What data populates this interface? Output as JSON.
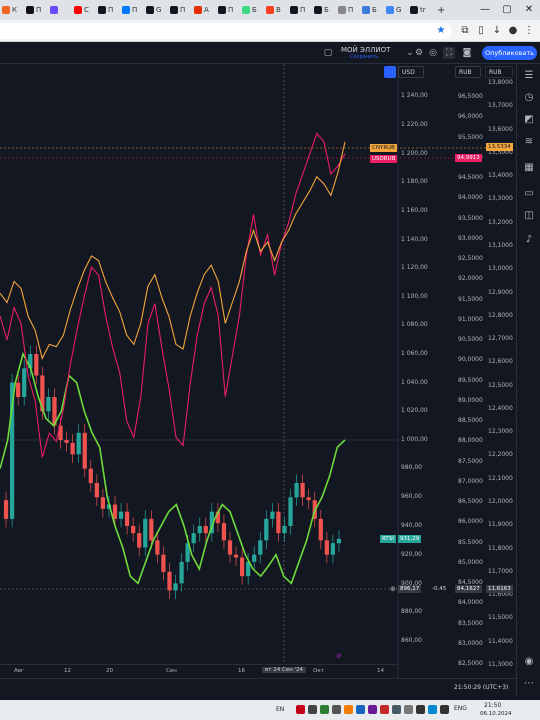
{
  "browser": {
    "tabs": [
      {
        "label": "К",
        "icon": "kinopoisk-icon",
        "color": "#f26522"
      },
      {
        "label": "П",
        "icon": "notion-icon",
        "color": "#111111"
      },
      {
        "label": "",
        "icon": "proton-icon",
        "color": "#6d4aff"
      },
      {
        "label": "С",
        "icon": "youtube-icon",
        "color": "#ff0000"
      },
      {
        "label": "П",
        "icon": "tv-icon",
        "color": "#131722"
      },
      {
        "label": "П",
        "icon": "vk-icon",
        "color": "#0077ff"
      },
      {
        "label": "G",
        "icon": "tv-icon",
        "color": "#131722"
      },
      {
        "label": "П",
        "icon": "tv-icon",
        "color": "#131722"
      },
      {
        "label": "А",
        "icon": "aliexpress-icon",
        "color": "#e62e04"
      },
      {
        "label": "П",
        "icon": "tv-icon",
        "color": "#131722"
      },
      {
        "label": "Б",
        "icon": "android-icon",
        "color": "#3ddc84"
      },
      {
        "label": "В",
        "icon": "yandex-icon",
        "color": "#fc3f1d"
      },
      {
        "label": "П",
        "icon": "tv-icon",
        "color": "#131722"
      },
      {
        "label": "Б",
        "icon": "tv-icon",
        "color": "#131722"
      },
      {
        "label": "П",
        "icon": "web-icon",
        "color": "#888888"
      },
      {
        "label": "Б",
        "icon": "web-icon",
        "color": "#3d7bd9"
      },
      {
        "label": "G",
        "icon": "google-icon",
        "color": "#4285f4"
      },
      {
        "label": "tr",
        "icon": "tv-icon",
        "color": "#131722"
      }
    ],
    "new_tab": "+",
    "win_minimize": "—",
    "win_maximize": "▢",
    "win_close": "✕"
  },
  "toolbar": {
    "layout_name": "МОЙ ЭЛЛИОТ",
    "layout_status": "Сохранить",
    "publish_label": "Опубликовать"
  },
  "scales": {
    "mid_currency": "USD",
    "right_currency": "RUB",
    "rts_ticks": [
      "1 240,00",
      "1 220,00",
      "1 200,00",
      "1 180,00",
      "1 160,00",
      "1 140,00",
      "1 120,00",
      "1 100,00",
      "1 080,00",
      "1 060,00",
      "1 040,00",
      "1 020,00",
      "1 000,00",
      "980,00",
      "960,00",
      "940,00",
      "920,00",
      "900,00",
      "880,00",
      "860,00"
    ],
    "rts_tick_positions": [
      96,
      125,
      154,
      182,
      211,
      240,
      268,
      297,
      325,
      354,
      383,
      411,
      440,
      468,
      497,
      526,
      555,
      584,
      612,
      641
    ],
    "usdrub_ticks": [
      "96,5000",
      "96,0000",
      "95,5000",
      "95,0000",
      "94,5000",
      "94,0000",
      "93,5000",
      "93,0000",
      "92,5000",
      "92,0000",
      "91,5000",
      "91,0000",
      "90,5000",
      "90,0000",
      "89,5000",
      "89,0000",
      "88,5000",
      "88,0000",
      "87,5000",
      "87,0000",
      "86,5000",
      "86,0000",
      "85,5000",
      "85,0000",
      "84,5000",
      "84,0000",
      "83,5000",
      "83,0000",
      "82,5000"
    ],
    "cnyrub_ticks": [
      "13,8000",
      "13,7000",
      "13,6000",
      "13,5000",
      "13,4000",
      "13,3000",
      "13,2000",
      "13,1000",
      "13,0000",
      "12,9000",
      "12,8000",
      "12,7000",
      "12,6000",
      "12,5000",
      "12,4000",
      "12,3000",
      "12,2000",
      "12,1000",
      "12,0000",
      "11,9000",
      "11,8000",
      "11,7000",
      "11,6000",
      "11,5000",
      "11,4000",
      "11,3000"
    ]
  },
  "labels": {
    "cnyrub_name": "CNYRUB",
    "cnyrub_value": "13,5334",
    "usdrub_name": "USDRUB",
    "usdrub_value": "94,9913",
    "rtsi_name": "RTSI",
    "rtsi_value": "931,29",
    "cross_rts": "896,17",
    "cross_change": "-0,45",
    "cross_usd": "84,1627",
    "cross_cny": "11,6163",
    "crosshair_date": "вт 24 Сен '24"
  },
  "time_axis": [
    {
      "label": "Авг"
    },
    {
      "label": "12"
    },
    {
      "label": "20"
    },
    {
      "label": "Сен"
    },
    {
      "label": "16"
    },
    {
      "label": "Окт"
    },
    {
      "label": "14"
    }
  ],
  "bottom": {
    "clock": "21:50:29 (UTC+3)"
  },
  "taskbar": {
    "lang": "ENG",
    "lang2": "EN",
    "time": "21:50",
    "date": "06.10.2024"
  },
  "colors": {
    "bg": "#131722",
    "green": "#26a69a",
    "red": "#ef5350",
    "lime": "#6ddb3a",
    "orange": "#f4a53b",
    "magenta": "#e91e63",
    "accent": "#2962ff"
  },
  "chart_data": {
    "type": "line",
    "note_series": [
      {
        "name": "RTSI",
        "kind": "candles",
        "values": [
          958,
          945,
          1040,
          1030,
          1050,
          1060,
          1045,
          1020,
          1030,
          1010,
          1000,
          998,
          990,
          1005,
          980,
          970,
          960,
          952,
          955,
          945,
          950,
          940,
          935,
          925,
          945,
          930,
          920,
          908,
          895,
          900,
          915,
          928,
          935,
          940,
          935,
          950,
          942,
          930,
          920,
          918,
          905,
          915,
          920,
          930,
          945,
          950,
          935,
          940,
          960,
          970,
          960,
          958,
          945,
          930,
          920,
          928,
          931
        ]
      },
      {
        "name": "USDRUB",
        "values": [
          91.0,
          90.4,
          91.2,
          90.8,
          89.5,
          88.9,
          87.5,
          88.1,
          87.9,
          88.7,
          89.8,
          90.7,
          91.5,
          92.2,
          92.0,
          91.0,
          90.2,
          89.6,
          88.4,
          88.0,
          89.0,
          90.8,
          91.3,
          90.2,
          89.2,
          88.0,
          87.8,
          89.3,
          90.5,
          91.3,
          91.7,
          91.0,
          89.0,
          90.0,
          91.0,
          92.5,
          93.5,
          92.5,
          93.0,
          92.0,
          92.8,
          93.3,
          94.0,
          94.5,
          95.0,
          95.5,
          95.3,
          94.5,
          94.7,
          95.0
        ]
      },
      {
        "name": "CNYRUB",
        "values": [
          12.88,
          12.84,
          12.93,
          12.9,
          12.78,
          12.72,
          12.6,
          12.66,
          12.65,
          12.7,
          12.81,
          12.9,
          12.98,
          13.04,
          13.02,
          12.93,
          12.86,
          12.8,
          12.7,
          12.66,
          12.75,
          12.91,
          12.96,
          12.86,
          12.78,
          12.66,
          12.64,
          12.78,
          12.88,
          12.96,
          13.0,
          12.93,
          12.75,
          12.84,
          12.93,
          13.06,
          13.15,
          13.06,
          13.1,
          13.02,
          13.1,
          13.15,
          13.22,
          13.27,
          13.32,
          13.38,
          13.35,
          13.3,
          13.4,
          13.53
        ]
      },
      {
        "name": "lime",
        "values": [
          980,
          1000,
          1040,
          1060,
          1050,
          1030,
          1015,
          1010,
          1020,
          1045,
          1040,
          1020,
          1005,
          995,
          960,
          940,
          925,
          905,
          900,
          915,
          930,
          940,
          950,
          955,
          940,
          920,
          910,
          930,
          945,
          955,
          950,
          935,
          920,
          910,
          905,
          912,
          920,
          905,
          900,
          915,
          930,
          950,
          960,
          975,
          995,
          1000
        ]
      }
    ],
    "ylim_rts": [
      850,
      1250
    ],
    "ylim_usdrub": [
      82.3,
      96.8
    ],
    "ylim_cnyrub": [
      11.28,
      13.86
    ]
  }
}
